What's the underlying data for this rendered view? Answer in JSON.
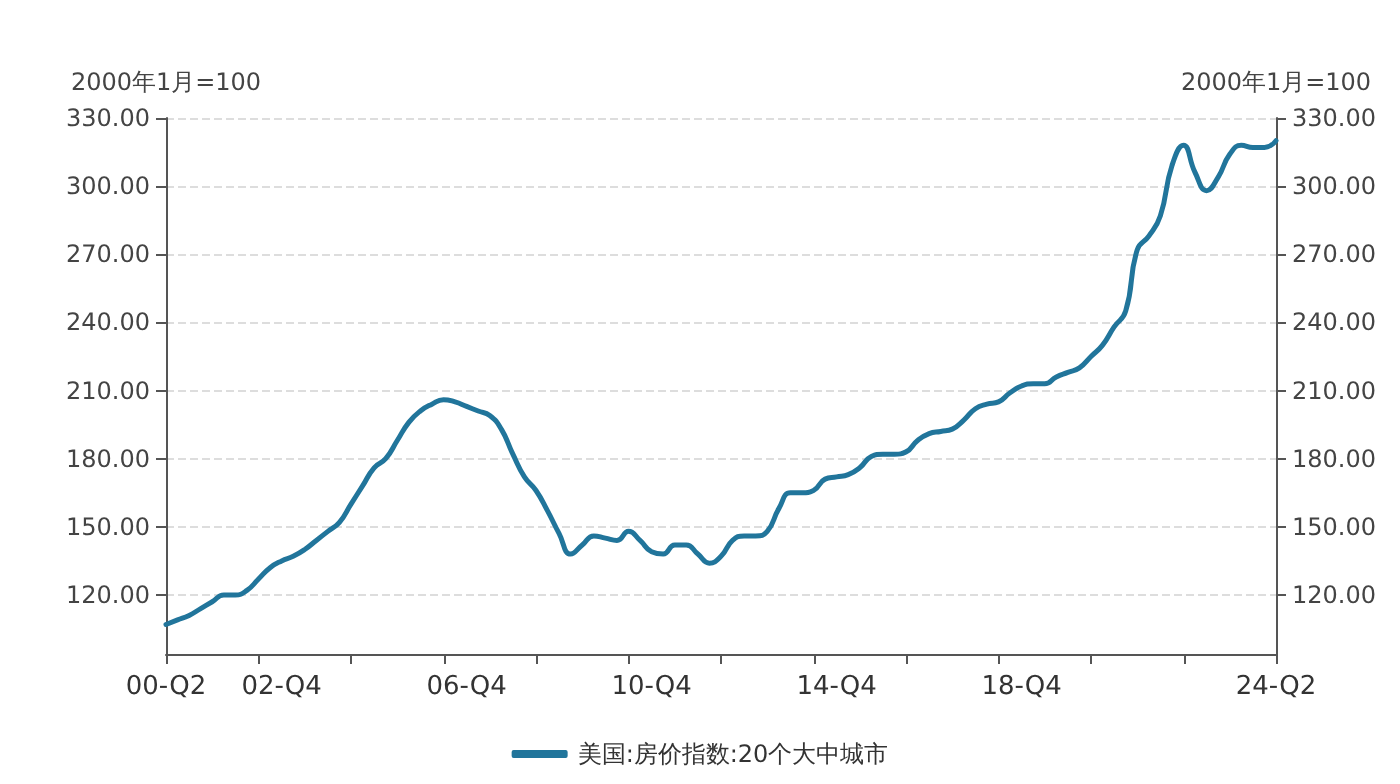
{
  "chart_data": {
    "type": "line",
    "ylabel": "2000年1月=100",
    "y2label": "2000年1月=100",
    "categories": [
      "00-Q2",
      null,
      null,
      null,
      null,
      null,
      null,
      null,
      null,
      null,
      "02-Q4",
      null,
      null,
      null,
      null,
      null,
      null,
      null,
      null,
      null,
      null,
      null,
      null,
      null,
      null,
      null,
      "06-Q4",
      null,
      null,
      null,
      null,
      null,
      null,
      null,
      null,
      null,
      null,
      null,
      null,
      null,
      null,
      null,
      "10-Q4",
      null,
      null,
      null,
      null,
      null,
      null,
      null,
      null,
      null,
      null,
      null,
      null,
      null,
      null,
      null,
      "14-Q4",
      null,
      null,
      null,
      null,
      null,
      null,
      null,
      null,
      null,
      null,
      null,
      null,
      null,
      null,
      null,
      "18-Q4",
      null,
      null,
      null,
      null,
      null,
      null,
      null,
      null,
      null,
      null,
      null,
      null,
      null,
      null,
      null,
      null,
      null,
      null,
      null,
      null,
      null,
      "24-Q2"
    ],
    "series": [
      {
        "name": "美国:房价指数:20个大中城市",
        "color": "#21759b",
        "values": [
          107,
          109,
          111,
          114,
          117,
          120,
          120,
          122,
          127,
          132,
          135,
          137,
          140,
          144,
          148,
          152,
          160,
          168,
          176,
          180,
          188,
          196,
          201,
          204,
          206,
          205,
          203,
          201,
          199,
          193,
          182,
          172,
          166,
          157,
          147,
          138,
          142,
          146,
          145,
          144,
          148,
          144,
          139,
          138,
          142,
          142,
          138,
          134,
          137,
          144,
          146,
          146,
          148,
          158,
          165,
          165,
          166,
          171,
          172,
          173,
          176,
          181,
          182,
          182,
          183,
          188,
          191,
          192,
          193,
          197,
          202,
          204,
          205,
          209,
          212,
          213,
          213,
          216,
          218,
          220,
          225,
          230,
          238,
          245,
          272,
          278,
          287,
          309,
          318,
          306,
          298,
          304,
          314,
          318,
          317,
          317,
          320
        ]
      }
    ],
    "ylim": [
      94,
      330
    ],
    "yticks": [
      {
        "value": 120,
        "label": "120.00"
      },
      {
        "value": 150,
        "label": "150.00"
      },
      {
        "value": 180,
        "label": "180.00"
      },
      {
        "value": 210,
        "label": "210.00"
      },
      {
        "value": 240,
        "label": "240.00"
      },
      {
        "value": 270,
        "label": "270.00"
      },
      {
        "value": 300,
        "label": "300.00"
      },
      {
        "value": 330,
        "label": "330.00"
      }
    ],
    "y2lim": [
      94,
      330
    ],
    "y2ticks": [
      {
        "value": 120,
        "label": "120.00"
      },
      {
        "value": 150,
        "label": "150.00"
      },
      {
        "value": 180,
        "label": "180.00"
      },
      {
        "value": 210,
        "label": "210.00"
      },
      {
        "value": 240,
        "label": "240.00"
      },
      {
        "value": 270,
        "label": "270.00"
      },
      {
        "value": 300,
        "label": "300.00"
      },
      {
        "value": 330,
        "label": "330.00"
      }
    ],
    "grid": "y",
    "legend": "bottom",
    "marker": "none",
    "line_style": "solid"
  }
}
